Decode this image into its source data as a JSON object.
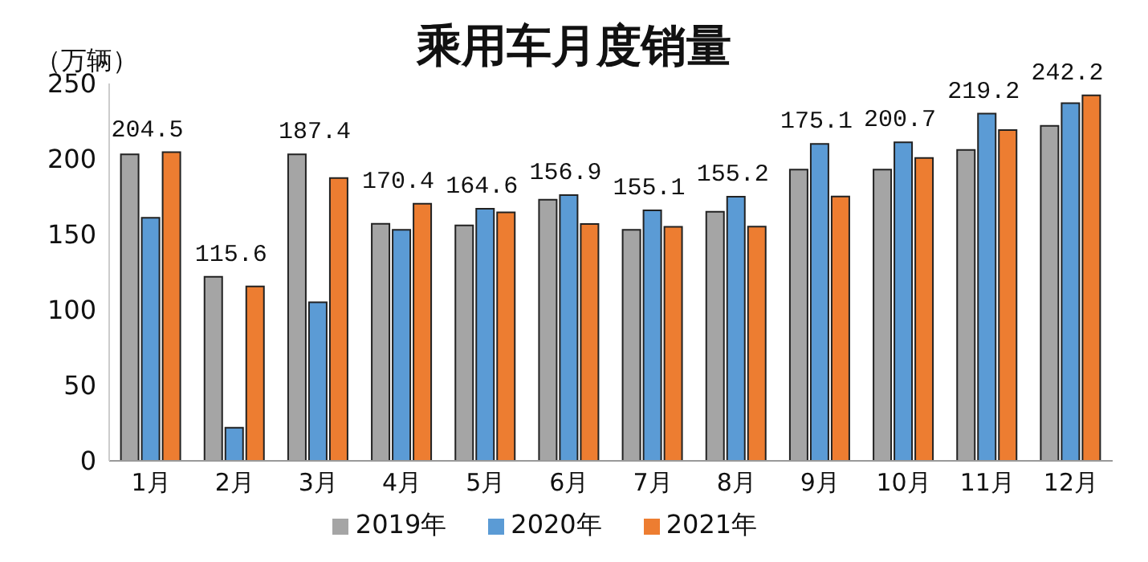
{
  "chart_data": {
    "type": "bar",
    "title": "乘用车月度销量",
    "ylabel": "（万辆）",
    "categories": [
      "1月",
      "2月",
      "3月",
      "4月",
      "5月",
      "6月",
      "7月",
      "8月",
      "9月",
      "10月",
      "11月",
      "12月"
    ],
    "series": [
      {
        "name": "2019年",
        "color": "#a5a5a5",
        "values": [
          203,
          122,
          203,
          157,
          156,
          173,
          153,
          165,
          193,
          193,
          206,
          222
        ]
      },
      {
        "name": "2020年",
        "color": "#5b9bd5",
        "values": [
          161,
          22,
          105,
          153,
          167,
          176,
          166,
          175,
          210,
          211,
          230,
          237
        ]
      },
      {
        "name": "2021年",
        "color": "#ed7d31",
        "values": [
          204.5,
          115.6,
          187.4,
          170.4,
          164.6,
          156.9,
          155.1,
          155.2,
          175.1,
          200.7,
          219.2,
          242.2
        ],
        "value_labels": [
          "204.5",
          "115.6",
          "187.4",
          "170.4",
          "164.6",
          "156.9",
          "155.1",
          "155.2",
          "175.1",
          "200.7",
          "219.2",
          "242.2"
        ]
      }
    ],
    "ylim": [
      0,
      250
    ],
    "yticks": [
      0,
      50,
      100,
      150,
      200,
      250
    ],
    "grid": false,
    "legend": "bottom"
  }
}
